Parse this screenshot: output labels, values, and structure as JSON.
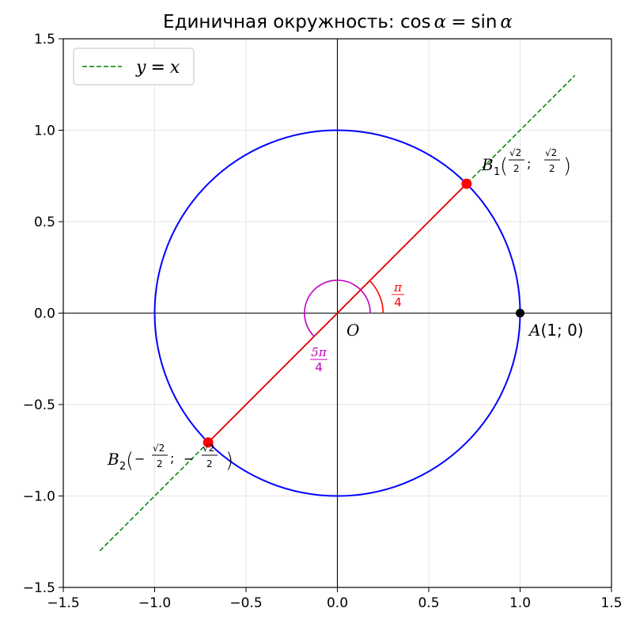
{
  "chart_data": {
    "type": "line",
    "title": "Единичная окружность: cos α = sin α",
    "xlabel": "",
    "ylabel": "",
    "xlim": [
      -1.5,
      1.5
    ],
    "ylim": [
      -1.5,
      1.5
    ],
    "xticks": [
      -1.5,
      -1.0,
      -0.5,
      0.0,
      0.5,
      1.0,
      1.5
    ],
    "yticks": [
      -1.5,
      -1.0,
      -0.5,
      0.0,
      0.5,
      1.0,
      1.5
    ],
    "xtick_labels": [
      "−1.5",
      "−1.0",
      "−0.5",
      "0.0",
      "0.5",
      "1.0",
      "1.5"
    ],
    "ytick_labels": [
      "−1.5",
      "−1.0",
      "−0.5",
      "0.0",
      "0.5",
      "1.0",
      "1.5"
    ],
    "grid": true,
    "legend": {
      "placement": "top-left",
      "entries": [
        "y = x"
      ]
    },
    "colors": {
      "circle": "#0000ff",
      "line_yx": "#008000",
      "radius": "#e00000",
      "points": "#ff0000",
      "point_a": "#000000",
      "angle_pi4": "#ff0000",
      "angle_5pi4": "#bf00bf",
      "axes": "#000000",
      "grid": "#e6e6e6"
    },
    "series": [
      {
        "name": "y = x",
        "style": "dashed",
        "x": [
          -1.3,
          1.3
        ],
        "y": [
          -1.3,
          1.3
        ]
      }
    ],
    "unit_circle": {
      "center": [
        0,
        0
      ],
      "radius": 1
    },
    "radius_segment": {
      "from": [
        -0.7071,
        -0.7071
      ],
      "to": [
        0.7071,
        0.7071
      ]
    },
    "points": [
      {
        "id": "B1",
        "x": 0.7071,
        "y": 0.7071,
        "label": "B₁(√2/2; √2/2)"
      },
      {
        "id": "B2",
        "x": -0.7071,
        "y": -0.7071,
        "label": "B₂(−√2/2; −√2/2)"
      },
      {
        "id": "A",
        "x": 1.0,
        "y": 0.0,
        "label": "A(1; 0)"
      },
      {
        "id": "O",
        "x": 0.0,
        "y": 0.0,
        "label": "O"
      }
    ],
    "angles": [
      {
        "label": "π/4",
        "start_deg": 0,
        "end_deg": 45,
        "radius": 0.25
      },
      {
        "label": "5π/4",
        "start_deg": 0,
        "end_deg": 225,
        "radius": 0.18
      }
    ],
    "annotations": {
      "b1_name": "B",
      "b1_sub": "1",
      "b2_name": "B",
      "b2_sub": "2",
      "a_label": "A",
      "a_coords": "(1; 0)",
      "o_label": "O",
      "sqrt2": "√2",
      "two": "2",
      "semicolon": ";",
      "minus": "−",
      "pi4_num": "π",
      "pi4_den": "4",
      "fivepi4_num": "5π",
      "fivepi4_den": "4"
    },
    "title_parts": {
      "prefix": "Единичная окружность: ",
      "cos": "cos",
      "sin": "sin",
      "alpha": "α",
      "eq": "="
    },
    "legend_parts": {
      "y": "y",
      "eq": "=",
      "x": "x"
    }
  }
}
